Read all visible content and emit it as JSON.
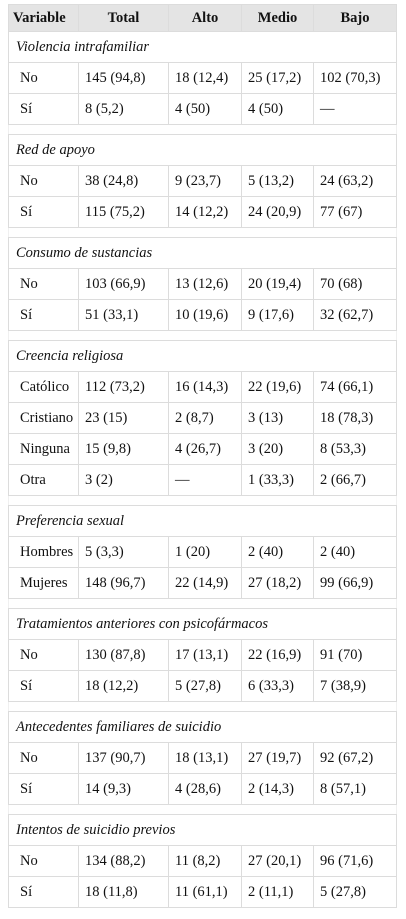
{
  "table": {
    "header": [
      "Variable",
      "Total",
      "Alto",
      "Medio",
      "Bajo"
    ],
    "sections": [
      {
        "title": "Violencia intrafamiliar",
        "rows": [
          [
            "No",
            "145 (94,8)",
            "18 (12,4)",
            "25 (17,2)",
            "102 (70,3)"
          ],
          [
            "Sí",
            "8 (5,2)",
            "4 (50)",
            "4 (50)",
            "—"
          ]
        ]
      },
      {
        "title": "Red de apoyo",
        "rows": [
          [
            "No",
            "38 (24,8)",
            "9 (23,7)",
            "5 (13,2)",
            "24 (63,2)"
          ],
          [
            "Sí",
            "115 (75,2)",
            "14 (12,2)",
            "24 (20,9)",
            "77 (67)"
          ]
        ]
      },
      {
        "title": "Consumo de sustancias",
        "rows": [
          [
            "No",
            "103 (66,9)",
            "13 (12,6)",
            "20 (19,4)",
            "70 (68)"
          ],
          [
            "Sí",
            "51 (33,1)",
            "10 (19,6)",
            "9 (17,6)",
            "32 (62,7)"
          ]
        ]
      },
      {
        "title": "Creencia religiosa",
        "rows": [
          [
            "Católico",
            "112 (73,2)",
            "16 (14,3)",
            "22 (19,6)",
            "74 (66,1)"
          ],
          [
            "Cristiano",
            "23 (15)",
            "2 (8,7)",
            "3 (13)",
            "18 (78,3)"
          ],
          [
            "Ninguna",
            "15 (9,8)",
            "4 (26,7)",
            "3 (20)",
            "8 (53,3)"
          ],
          [
            "Otra",
            "3 (2)",
            "—",
            "1 (33,3)",
            "2 (66,7)"
          ]
        ]
      },
      {
        "title": "Preferencia sexual",
        "rows": [
          [
            "Hombres",
            "5 (3,3)",
            "1 (20)",
            "2 (40)",
            "2 (40)"
          ],
          [
            "Mujeres",
            "148 (96,7)",
            "22 (14,9)",
            "27 (18,2)",
            "99 (66,9)"
          ]
        ]
      },
      {
        "title": "Tratamientos anteriores con psicofármacos",
        "rows": [
          [
            "No",
            "130 (87,8)",
            "17 (13,1)",
            "22 (16,9)",
            "91 (70)"
          ],
          [
            "Sí",
            "18 (12,2)",
            "5 (27,8)",
            "6 (33,3)",
            "7 (38,9)"
          ]
        ]
      },
      {
        "title": "Antecedentes familiares de suicidio",
        "rows": [
          [
            "No",
            "137 (90,7)",
            "18 (13,1)",
            "27 (19,7)",
            "92 (67,2)"
          ],
          [
            "Sí",
            "14 (9,3)",
            "4 (28,6)",
            "2 (14,3)",
            "8 (57,1)"
          ]
        ]
      },
      {
        "title": "Intentos de suicidio previos",
        "rows": [
          [
            "No",
            "134 (88,2)",
            "11 (8,2)",
            "27 (20,1)",
            "96 (71,6)"
          ],
          [
            "Sí",
            "18 (11,8)",
            "11 (61,1)",
            "2 (11,1)",
            "5 (27,8)"
          ]
        ]
      }
    ]
  }
}
